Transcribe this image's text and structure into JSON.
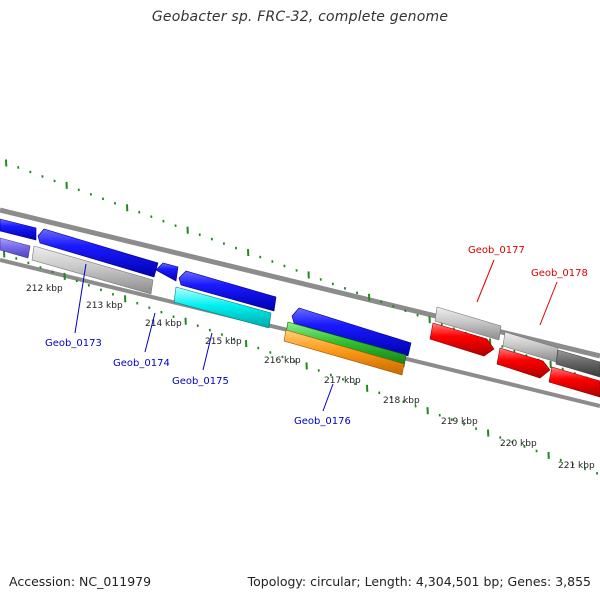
{
  "title": "Geobacter sp. FRC-32, complete genome",
  "footer": {
    "accession": "Accession: NC_011979",
    "summary": "Topology: circular; Length: 4,304,501 bp; Genes: 3,855"
  },
  "colors": {
    "ruler_ticks": "#1e8a1e",
    "backbone": "#8c8c8c",
    "forward_label": "#0000cc",
    "reverse_label": "#dd0000"
  },
  "ruler_labels": [
    "212 kbp",
    "213 kbp",
    "214 kbp",
    "215 kbp",
    "216 kbp",
    "217 kbp",
    "218 kbp",
    "219 kbp",
    "220 kbp",
    "221 kbp"
  ],
  "genes": [
    {
      "id": "geob-0173",
      "label": "Geob_0173",
      "strand": "forward"
    },
    {
      "id": "geob-0174",
      "label": "Geob_0174",
      "strand": "forward"
    },
    {
      "id": "geob-0175",
      "label": "Geob_0175",
      "strand": "forward"
    },
    {
      "id": "geob-0176",
      "label": "Geob_0176",
      "strand": "forward"
    },
    {
      "id": "geob-0177",
      "label": "Geob_0177",
      "strand": "reverse"
    },
    {
      "id": "geob-0178",
      "label": "Geob_0178",
      "strand": "reverse"
    }
  ]
}
